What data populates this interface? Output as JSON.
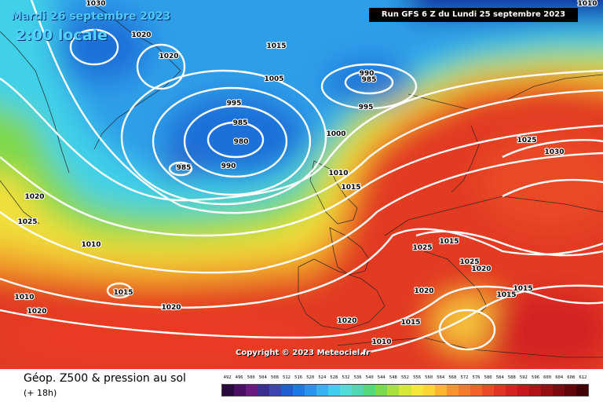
{
  "header": {
    "date_line": "Mardi 26 septembre 2023",
    "time_line": "2:00 locale",
    "run_info": "Run GFS 6 Z du Lundi 25 septembre 2023"
  },
  "footer": {
    "copyright": "Copyright © 2023 Meteociel.fr",
    "parameter": "Géop. Z500 & pression au sol",
    "lead_time": "(+ 18h)"
  },
  "isobar_labels": [
    {
      "text": "1030",
      "lon_lat": "top-left"
    },
    {
      "text": "1010",
      "lon_lat": "top-right"
    },
    {
      "text": "1020"
    },
    {
      "text": "1020"
    },
    {
      "text": "1015"
    },
    {
      "text": "1005"
    },
    {
      "text": "990"
    },
    {
      "text": "985"
    },
    {
      "text": "995"
    },
    {
      "text": "995"
    },
    {
      "text": "985"
    },
    {
      "text": "980"
    },
    {
      "text": "1000"
    },
    {
      "text": "985"
    },
    {
      "text": "990"
    },
    {
      "text": "1010"
    },
    {
      "text": "1015"
    },
    {
      "text": "1025"
    },
    {
      "text": "1030"
    },
    {
      "text": "1020"
    },
    {
      "text": "1025"
    },
    {
      "text": "1015"
    },
    {
      "text": "1025"
    },
    {
      "text": "1025"
    },
    {
      "text": "1020"
    },
    {
      "text": "1015"
    },
    {
      "text": "1015"
    },
    {
      "text": "1010"
    },
    {
      "text": "1010"
    },
    {
      "text": "1015"
    },
    {
      "text": "1020"
    },
    {
      "text": "1020"
    },
    {
      "text": "1020"
    },
    {
      "text": "1020"
    },
    {
      "text": "1015"
    },
    {
      "text": "1010"
    }
  ],
  "legend": {
    "values": [
      "492",
      "496",
      "500",
      "504",
      "508",
      "512",
      "516",
      "520",
      "524",
      "528",
      "532",
      "536",
      "540",
      "544",
      "548",
      "552",
      "556",
      "560",
      "564",
      "568",
      "572",
      "576",
      "580",
      "584",
      "588",
      "592",
      "596",
      "600",
      "604",
      "608",
      "612"
    ],
    "colors": [
      "#2a0a3e",
      "#4b0f63",
      "#6a1b7f",
      "#3a2f8f",
      "#3d45b3",
      "#1f5dd4",
      "#1f78e8",
      "#2a95f0",
      "#35b3f3",
      "#3fcdf0",
      "#50ddd8",
      "#4fd9b0",
      "#52d97c",
      "#7ad94c",
      "#a8e03c",
      "#d4e83a",
      "#f4e63a",
      "#fbd435",
      "#fbb530",
      "#fa932c",
      "#f77a2a",
      "#f3622a",
      "#ea4a27",
      "#e03424",
      "#d42320",
      "#c6181c",
      "#b01218",
      "#980c14",
      "#7e0810",
      "#60050a",
      "#420306"
    ]
  }
}
